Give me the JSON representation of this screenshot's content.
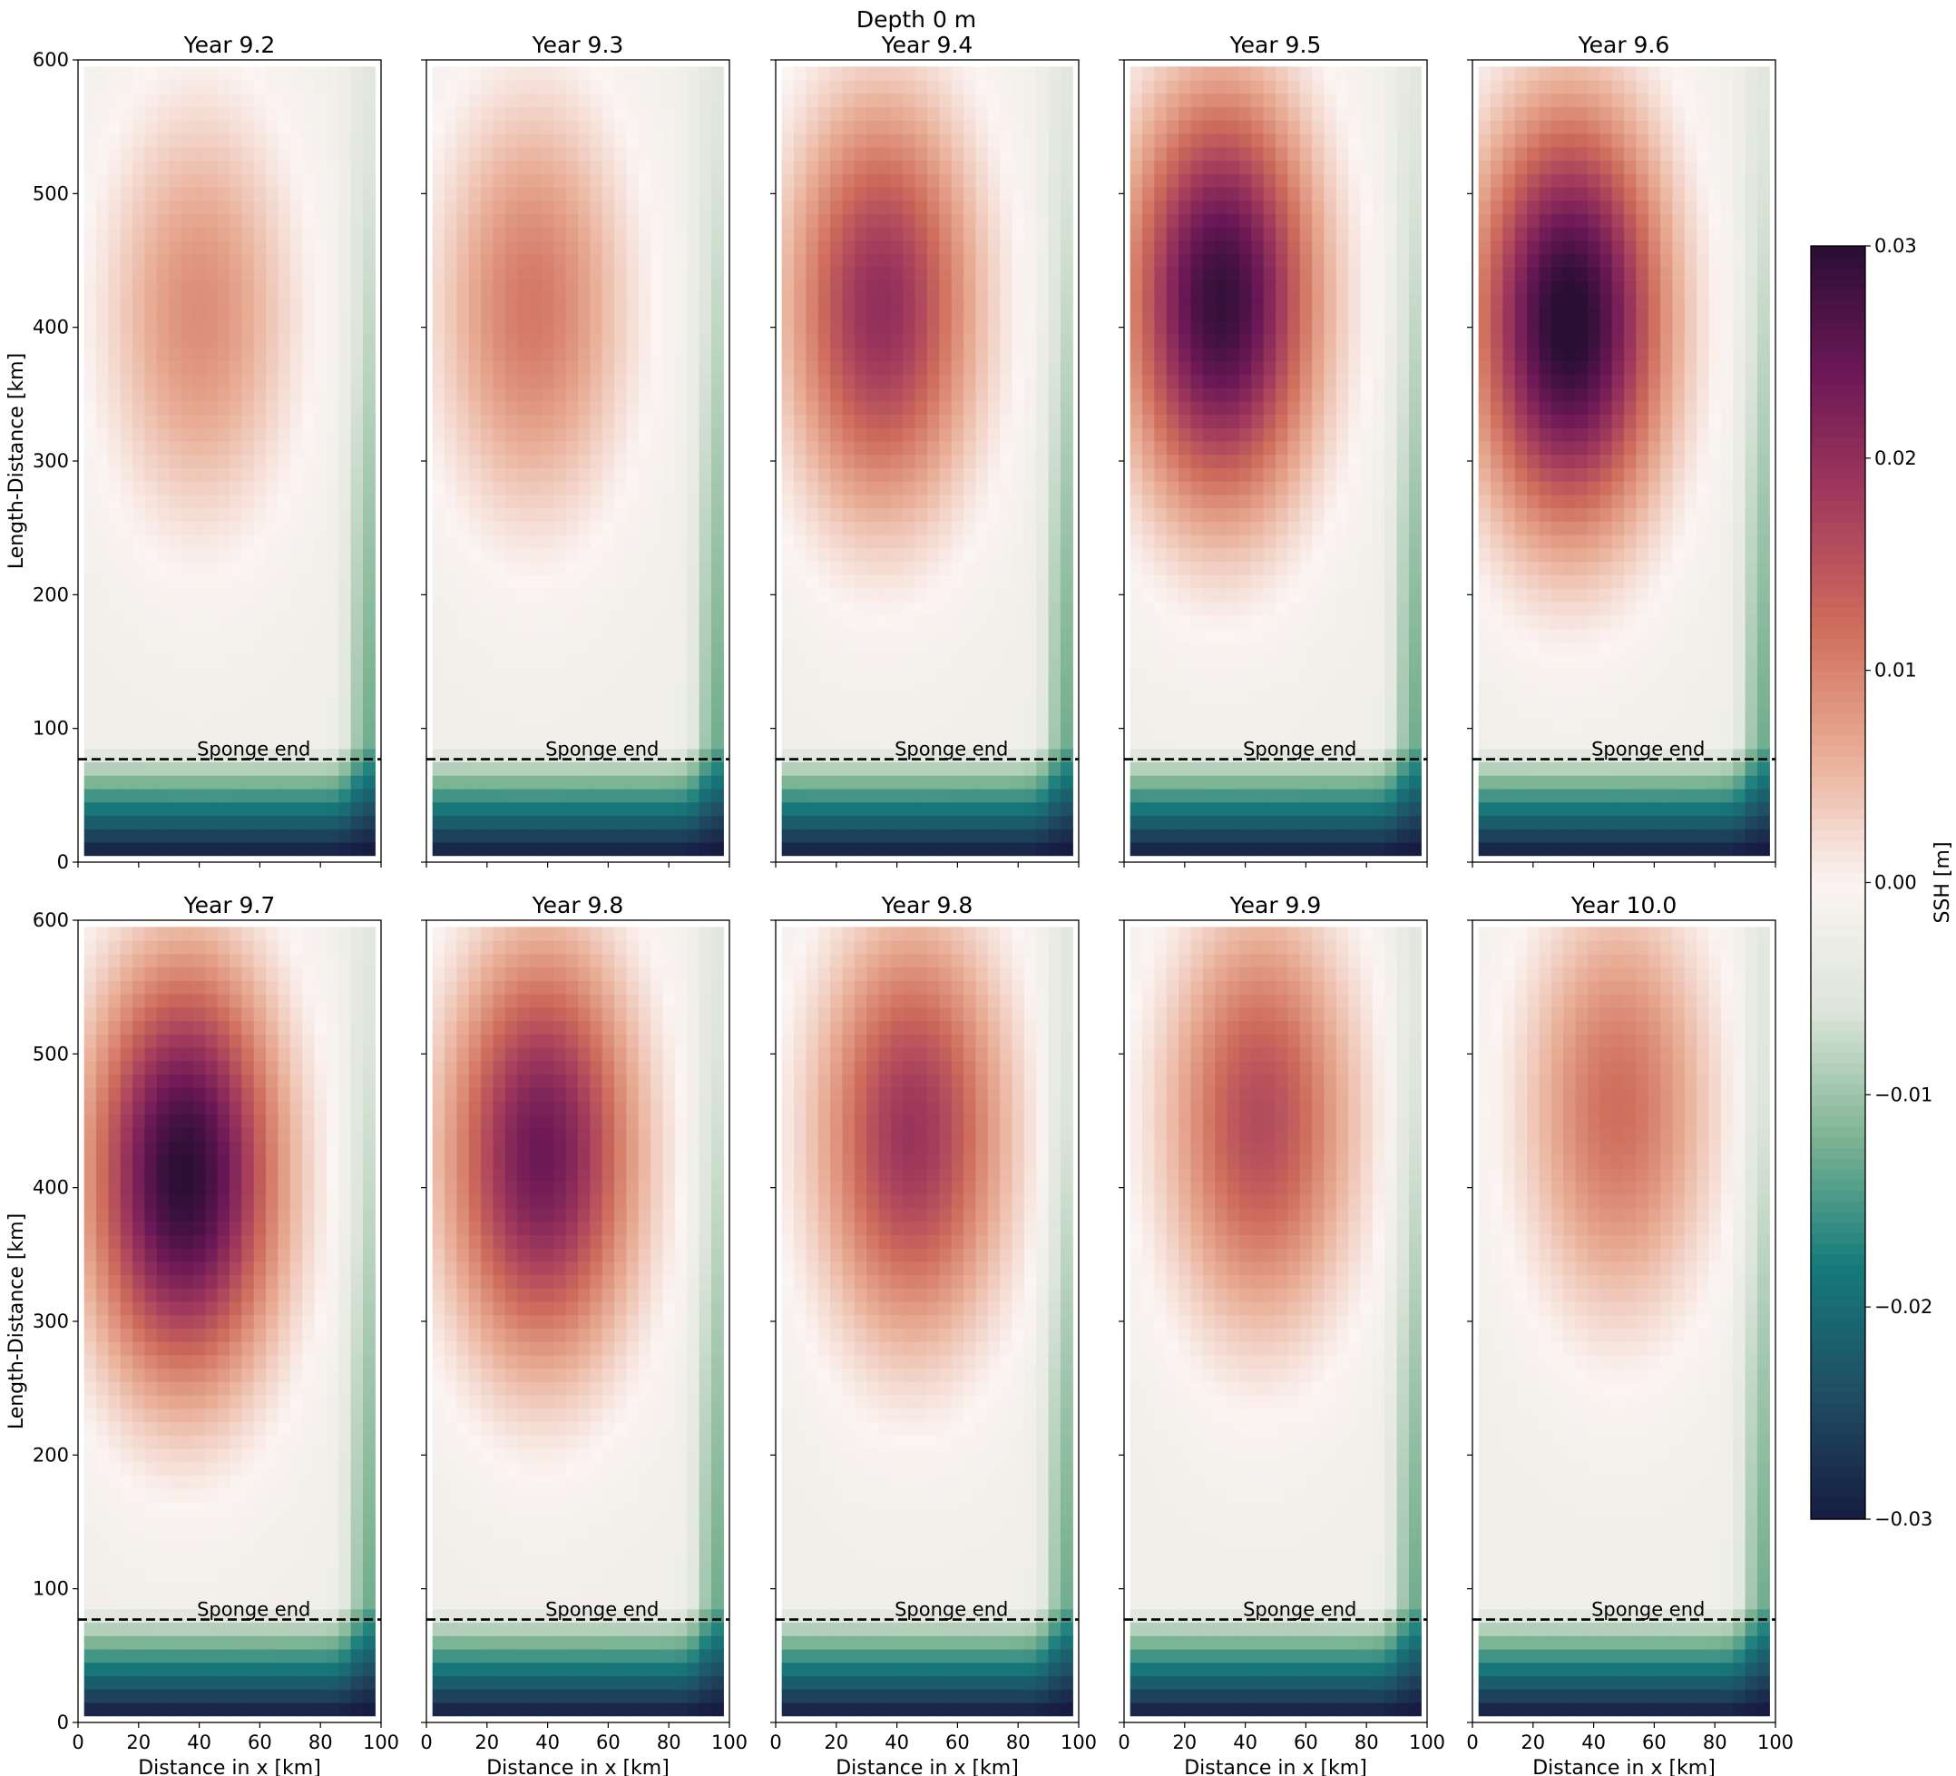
{
  "chart_data": {
    "type": "heatmap",
    "suptitle": "Depth 0 m",
    "colorbar": {
      "label": "SSH [m]",
      "range": [
        -0.03,
        0.03
      ],
      "ticks": [
        -0.03,
        -0.02,
        -0.01,
        0.0,
        0.01,
        0.02,
        0.03
      ],
      "tick_labels": [
        "−0.03",
        "−0.02",
        "−0.01",
        "0.00",
        "0.01",
        "0.02",
        "0.03"
      ],
      "colormap": "diverging teal-white-purple",
      "colors": [
        "#171c42",
        "#1f4e63",
        "#157b7b",
        "#7db493",
        "#dde5da",
        "#fbf4f2",
        "#e9ae97",
        "#cf6e5c",
        "#a33b5c",
        "#6c1856",
        "#2a0e34"
      ]
    },
    "x_axis": {
      "label": "Distance in x [km]",
      "range": [
        0,
        100
      ],
      "ticks": [
        0,
        20,
        40,
        60,
        80,
        100
      ]
    },
    "y_axis": {
      "label": "Length-Distance [km]",
      "range": [
        0,
        600
      ],
      "ticks": [
        0,
        100,
        200,
        300,
        400,
        500,
        600
      ]
    },
    "sponge": {
      "label": "Sponge end",
      "y": 77
    },
    "panels": [
      {
        "title": "Year 9.2",
        "center": [
          40,
          410
        ],
        "peak": 0.011
      },
      {
        "title": "Year 9.3",
        "center": [
          35,
          415
        ],
        "peak": 0.013
      },
      {
        "title": "Year 9.4",
        "center": [
          35,
          415
        ],
        "peak": 0.022
      },
      {
        "title": "Year 9.5",
        "center": [
          32,
          420
        ],
        "peak": 0.031
      },
      {
        "title": "Year 9.6",
        "center": [
          32,
          405
        ],
        "peak": 0.033
      },
      {
        "title": "Year 9.7",
        "center": [
          35,
          410
        ],
        "peak": 0.032
      },
      {
        "title": "Year 9.8",
        "center": [
          38,
          425
        ],
        "peak": 0.026
      },
      {
        "title": "Year 9.8",
        "center": [
          45,
          440
        ],
        "peak": 0.021
      },
      {
        "title": "Year 9.9",
        "center": [
          45,
          450
        ],
        "peak": 0.018
      },
      {
        "title": "Year 10.0",
        "center": [
          48,
          460
        ],
        "peak": 0.014
      }
    ]
  }
}
